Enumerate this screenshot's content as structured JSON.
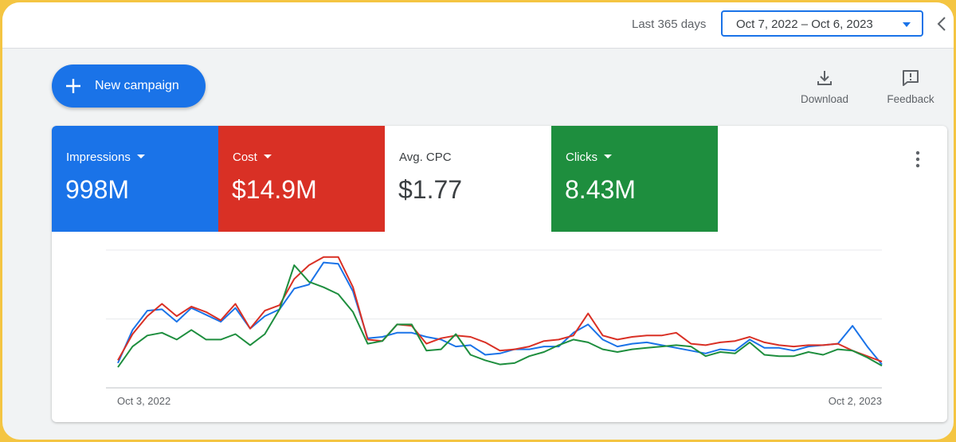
{
  "header": {
    "range_label": "Last 365 days",
    "date_range": "Oct 7, 2022 – Oct 6, 2023",
    "collapse_icon": "chevron-left-icon"
  },
  "toolbar": {
    "new_campaign_label": "New campaign",
    "new_campaign_icon": "plus-icon",
    "download_label": "Download",
    "download_icon": "download-icon",
    "feedback_label": "Feedback",
    "feedback_icon": "feedback-icon"
  },
  "metrics": [
    {
      "label": "Impressions",
      "value": "998M",
      "has_dropdown": true,
      "color": "#1a73e8"
    },
    {
      "label": "Cost",
      "value": "$14.9M",
      "has_dropdown": true,
      "color": "#d93025"
    },
    {
      "label": "Avg. CPC",
      "value": "$1.77",
      "has_dropdown": false,
      "color": "#ffffff"
    },
    {
      "label": "Clicks",
      "value": "8.43M",
      "has_dropdown": true,
      "color": "#1e8e3e"
    }
  ],
  "more_icon": "more-vert-icon",
  "chart_data": {
    "type": "line",
    "x_tick_labels": [
      "Oct 3, 2022",
      "Oct 2, 2023"
    ],
    "y_range": [
      0,
      1
    ],
    "grid": true,
    "series": [
      {
        "color": "#1a73e8",
        "values": [
          0.18,
          0.42,
          0.56,
          0.57,
          0.48,
          0.58,
          0.53,
          0.48,
          0.58,
          0.43,
          0.52,
          0.57,
          0.72,
          0.75,
          0.91,
          0.9,
          0.7,
          0.36,
          0.37,
          0.4,
          0.4,
          0.37,
          0.35,
          0.3,
          0.31,
          0.24,
          0.25,
          0.28,
          0.28,
          0.3,
          0.3,
          0.4,
          0.46,
          0.35,
          0.3,
          0.32,
          0.33,
          0.31,
          0.29,
          0.27,
          0.25,
          0.28,
          0.27,
          0.35,
          0.29,
          0.29,
          0.27,
          0.3,
          0.31,
          0.32,
          0.45,
          0.3,
          0.17
        ]
      },
      {
        "color": "#d93025",
        "values": [
          0.2,
          0.39,
          0.52,
          0.61,
          0.52,
          0.59,
          0.55,
          0.49,
          0.61,
          0.43,
          0.56,
          0.6,
          0.79,
          0.89,
          0.95,
          0.95,
          0.73,
          0.35,
          0.34,
          0.46,
          0.45,
          0.32,
          0.36,
          0.38,
          0.37,
          0.33,
          0.27,
          0.28,
          0.3,
          0.34,
          0.35,
          0.38,
          0.54,
          0.38,
          0.35,
          0.37,
          0.38,
          0.38,
          0.4,
          0.32,
          0.31,
          0.33,
          0.34,
          0.37,
          0.33,
          0.31,
          0.3,
          0.31,
          0.31,
          0.32,
          0.27,
          0.23,
          0.19
        ]
      },
      {
        "color": "#1e8e3e",
        "values": [
          0.15,
          0.3,
          0.38,
          0.4,
          0.35,
          0.42,
          0.35,
          0.35,
          0.39,
          0.31,
          0.39,
          0.57,
          0.89,
          0.77,
          0.73,
          0.68,
          0.55,
          0.32,
          0.34,
          0.46,
          0.46,
          0.27,
          0.28,
          0.39,
          0.24,
          0.2,
          0.17,
          0.18,
          0.23,
          0.26,
          0.31,
          0.35,
          0.33,
          0.28,
          0.26,
          0.28,
          0.29,
          0.3,
          0.31,
          0.3,
          0.23,
          0.26,
          0.25,
          0.33,
          0.24,
          0.23,
          0.23,
          0.26,
          0.24,
          0.28,
          0.27,
          0.22,
          0.16
        ]
      }
    ]
  }
}
